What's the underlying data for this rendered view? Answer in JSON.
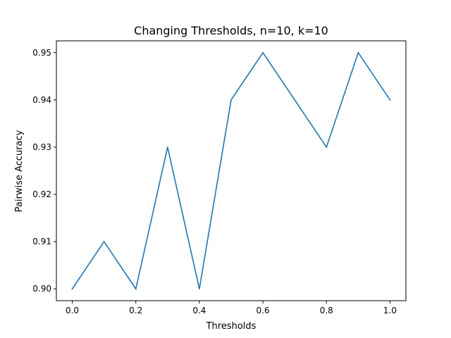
{
  "chart_data": {
    "type": "line",
    "title": "Changing Thresholds, n=10, k=10",
    "xlabel": "Thresholds",
    "ylabel": "Pairwise Accuracy",
    "x": [
      0.0,
      0.1,
      0.2,
      0.3,
      0.4,
      0.5,
      0.6,
      0.7,
      0.8,
      0.9,
      1.0
    ],
    "series": [
      {
        "values": [
          0.9,
          0.91,
          0.9,
          0.93,
          0.9,
          0.94,
          0.95,
          0.94,
          0.93,
          0.95,
          0.94
        ],
        "color": "#1f77b4"
      }
    ],
    "xlim": [
      -0.05,
      1.05
    ],
    "ylim": [
      0.8975,
      0.9525
    ],
    "xticks": [
      0.0,
      0.2,
      0.4,
      0.6,
      0.8,
      1.0
    ],
    "xtick_labels": [
      "0.0",
      "0.2",
      "0.4",
      "0.6",
      "0.8",
      "1.0"
    ],
    "yticks": [
      0.9,
      0.91,
      0.92,
      0.93,
      0.94,
      0.95
    ],
    "ytick_labels": [
      "0.90",
      "0.91",
      "0.92",
      "0.93",
      "0.94",
      "0.95"
    ],
    "grid": false,
    "legend": "none"
  }
}
